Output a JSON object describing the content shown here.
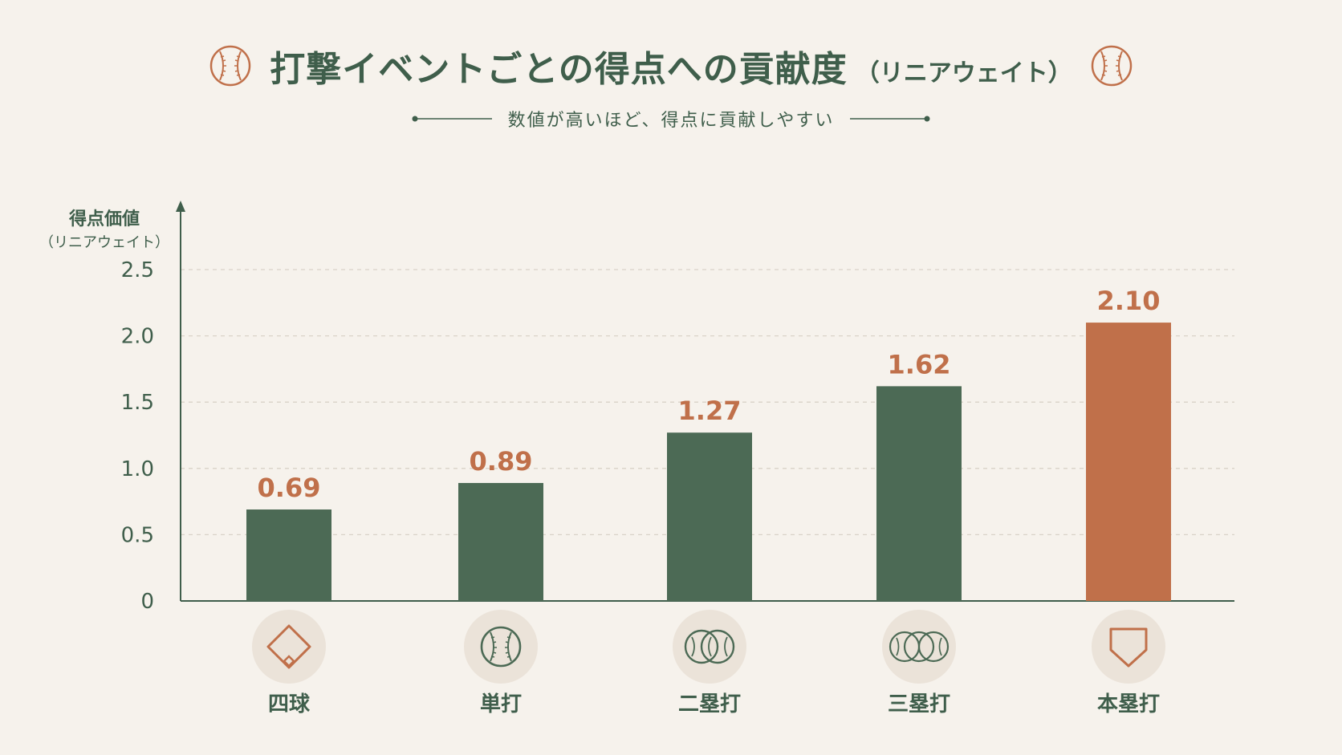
{
  "header": {
    "title": "打撃イベントごとの得点への貢献度",
    "title_paren": "（リニアウェイト）",
    "subtitle": "数値が高いほど、得点に貢献しやすい",
    "left_icon": "baseball-icon",
    "right_icon": "baseball-icon"
  },
  "colors": {
    "background": "#f6f2ec",
    "bar_default": "#4c6a55",
    "bar_highlight": "#c0704a",
    "label_accent": "#c0704a",
    "text": "#3f5e4b",
    "grid": "#d9d2c8",
    "icon_bg": "#ebe3d9"
  },
  "chart_data": {
    "type": "bar",
    "title": "打撃イベントごとの得点への貢献度（リニアウェイト）",
    "subtitle": "数値が高いほど、得点に貢献しやすい",
    "ylabel": "得点価値",
    "ylabel_sub": "（リニアウェイト）",
    "xlabel": "",
    "categories": [
      "四球",
      "単打",
      "二塁打",
      "三塁打",
      "本塁打"
    ],
    "values": [
      0.69,
      0.89,
      1.27,
      1.62,
      2.1
    ],
    "value_labels": [
      "0.69",
      "0.89",
      "1.27",
      "1.62",
      "2.10"
    ],
    "highlight_index": 4,
    "category_icons": [
      "base-diamond-icon",
      "baseball-icon",
      "two-baseballs-icon",
      "three-baseballs-icon",
      "home-plate-icon"
    ],
    "ylim": [
      0,
      2.5
    ],
    "yticks": [
      0,
      0.5,
      1.0,
      1.5,
      2.0,
      2.5
    ],
    "ytick_labels": [
      "0",
      "0.5",
      "1.0",
      "1.5",
      "2.0",
      "2.5"
    ],
    "grid": true,
    "grid_style": "dashed",
    "legend": "none"
  }
}
